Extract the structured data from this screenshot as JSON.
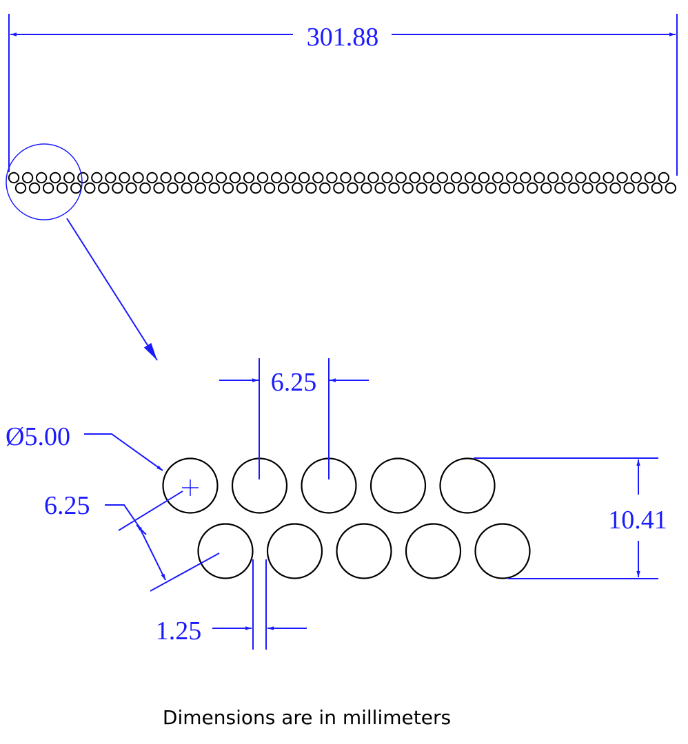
{
  "colors": {
    "dimension": "#1a1aff",
    "geometry": "#000000",
    "background": "#ffffff"
  },
  "overview": {
    "top_row_count": 48,
    "bottom_row_count": 48
  },
  "detail": {
    "top_row_count": 5,
    "bottom_row_count": 5
  },
  "dimensions": {
    "overall_length": "301.88",
    "horizontal_pitch": "6.25",
    "diameter": "Ø5.00",
    "diagonal_pitch": "6.25",
    "row_height": "10.41",
    "gap": "1.25"
  },
  "caption": "Dimensions are in millimeters"
}
